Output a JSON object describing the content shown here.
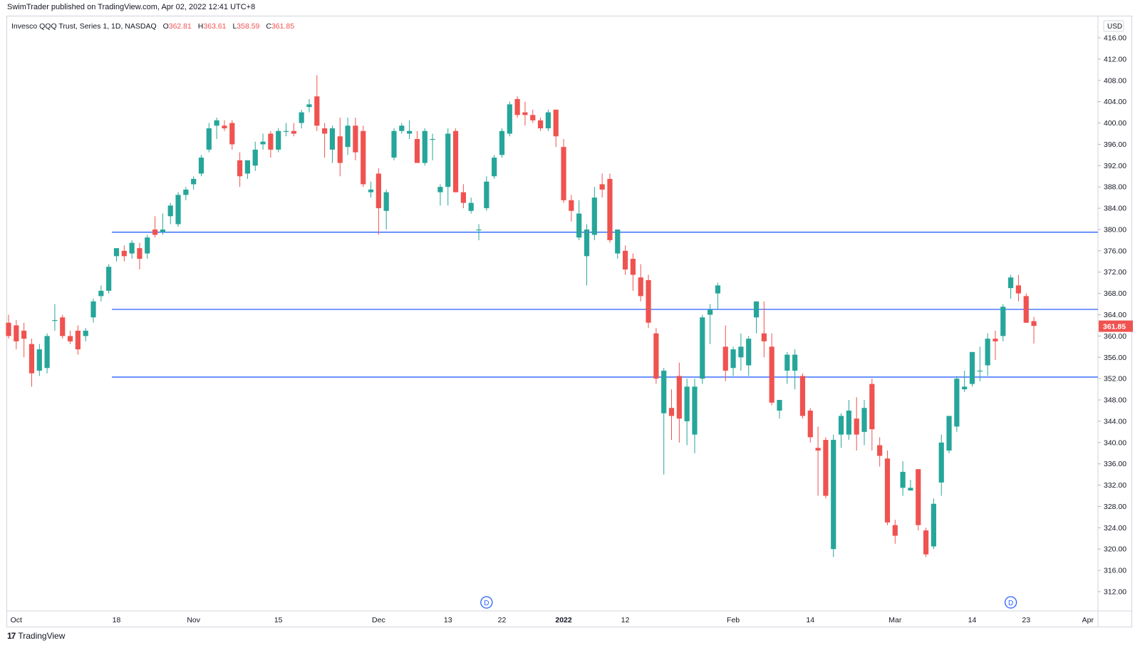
{
  "header": {
    "publisher": "SwimTrader published on TradingView.com, Apr 02, 2022 12:41 UTC+8"
  },
  "legend": {
    "symbol": "Invesco QQQ Trust, Series 1, 1D, NASDAQ",
    "open_label": "O",
    "open": "362.81",
    "high_label": "H",
    "high": "363.61",
    "low_label": "L",
    "low": "358.59",
    "close_label": "C",
    "close": "361.85"
  },
  "footer": {
    "brand": "TradingView",
    "logo": "tv-logo-icon"
  },
  "colors": {
    "up": "#26a69a",
    "down": "#ef5350",
    "line": "#2962ff",
    "axis": "#d1d4dc"
  },
  "chart_data": {
    "type": "candlestick",
    "currency": "USD",
    "last_price": "361.85",
    "ylim": [
      308,
      418
    ],
    "y_ticks": [
      312,
      316,
      320,
      324,
      328,
      332,
      336,
      340,
      344,
      348,
      352,
      356,
      360,
      364,
      368,
      372,
      376,
      380,
      384,
      388,
      392,
      396,
      400,
      404,
      408,
      412,
      416
    ],
    "x_ticks": [
      {
        "label": "Oct",
        "index": 1
      },
      {
        "label": "18",
        "index": 14
      },
      {
        "label": "Nov",
        "index": 24
      },
      {
        "label": "15",
        "index": 35
      },
      {
        "label": "Dec",
        "index": 48
      },
      {
        "label": "13",
        "index": 57
      },
      {
        "label": "22",
        "index": 64
      },
      {
        "label": "2022",
        "index": 72
      },
      {
        "label": "12",
        "index": 80
      },
      {
        "label": "Feb",
        "index": 94
      },
      {
        "label": "14",
        "index": 104
      },
      {
        "label": "Mar",
        "index": 115
      },
      {
        "label": "14",
        "index": 125
      },
      {
        "label": "23",
        "index": 132
      },
      {
        "label": "Apr",
        "index": 140
      }
    ],
    "events": [
      {
        "label": "D",
        "index": 62
      },
      {
        "label": "D",
        "index": 130
      }
    ],
    "horizontal_lines": [
      379.5,
      365.0,
      352.3
    ],
    "candles": [
      {
        "o": 362.5,
        "h": 364.0,
        "l": 359.5,
        "c": 360.0
      },
      {
        "o": 362.0,
        "h": 363.0,
        "l": 357.5,
        "c": 359.0
      },
      {
        "o": 361.0,
        "h": 362.5,
        "l": 356.0,
        "c": 359.5
      },
      {
        "o": 358.5,
        "h": 359.5,
        "l": 350.5,
        "c": 353.0
      },
      {
        "o": 353.5,
        "h": 358.5,
        "l": 352.5,
        "c": 357.5
      },
      {
        "o": 354.0,
        "h": 360.5,
        "l": 353.0,
        "c": 360.0
      },
      {
        "o": 363.0,
        "h": 366.0,
        "l": 361.0,
        "c": 363.0
      },
      {
        "o": 363.5,
        "h": 364.0,
        "l": 359.5,
        "c": 360.0
      },
      {
        "o": 360.0,
        "h": 361.0,
        "l": 358.5,
        "c": 359.0
      },
      {
        "o": 361.0,
        "h": 362.0,
        "l": 356.5,
        "c": 357.5
      },
      {
        "o": 360.0,
        "h": 361.5,
        "l": 359.0,
        "c": 361.0
      },
      {
        "o": 363.5,
        "h": 367.0,
        "l": 362.5,
        "c": 366.5
      },
      {
        "o": 367.5,
        "h": 369.5,
        "l": 366.5,
        "c": 368.5
      },
      {
        "o": 368.5,
        "h": 373.5,
        "l": 368.0,
        "c": 373.0
      },
      {
        "o": 375.0,
        "h": 376.5,
        "l": 374.0,
        "c": 376.5
      },
      {
        "o": 376.0,
        "h": 377.0,
        "l": 374.0,
        "c": 375.0
      },
      {
        "o": 375.5,
        "h": 378.0,
        "l": 374.5,
        "c": 377.5
      },
      {
        "o": 376.5,
        "h": 377.5,
        "l": 372.5,
        "c": 374.5
      },
      {
        "o": 375.5,
        "h": 379.0,
        "l": 374.5,
        "c": 378.5
      },
      {
        "o": 380.0,
        "h": 382.5,
        "l": 378.5,
        "c": 379.0
      },
      {
        "o": 379.5,
        "h": 383.0,
        "l": 379.0,
        "c": 380.0
      },
      {
        "o": 382.5,
        "h": 385.0,
        "l": 381.0,
        "c": 384.5
      },
      {
        "o": 381.0,
        "h": 387.0,
        "l": 380.5,
        "c": 386.5
      },
      {
        "o": 386.5,
        "h": 388.0,
        "l": 385.5,
        "c": 387.5
      },
      {
        "o": 388.5,
        "h": 390.0,
        "l": 387.5,
        "c": 389.5
      },
      {
        "o": 390.5,
        "h": 394.0,
        "l": 390.0,
        "c": 393.5
      },
      {
        "o": 395.0,
        "h": 400.0,
        "l": 394.5,
        "c": 399.0
      },
      {
        "o": 399.5,
        "h": 401.0,
        "l": 397.0,
        "c": 400.5
      },
      {
        "o": 399.5,
        "h": 400.5,
        "l": 398.5,
        "c": 399.0
      },
      {
        "o": 400.0,
        "h": 400.5,
        "l": 395.0,
        "c": 396.0
      },
      {
        "o": 393.0,
        "h": 394.5,
        "l": 388.0,
        "c": 390.0
      },
      {
        "o": 390.5,
        "h": 393.0,
        "l": 389.5,
        "c": 393.0
      },
      {
        "o": 392.0,
        "h": 396.5,
        "l": 391.0,
        "c": 395.0
      },
      {
        "o": 396.0,
        "h": 398.0,
        "l": 395.0,
        "c": 396.5
      },
      {
        "o": 398.0,
        "h": 398.5,
        "l": 393.5,
        "c": 395.0
      },
      {
        "o": 395.0,
        "h": 399.0,
        "l": 394.5,
        "c": 398.5
      },
      {
        "o": 398.5,
        "h": 400.0,
        "l": 397.5,
        "c": 398.5
      },
      {
        "o": 398.5,
        "h": 400.0,
        "l": 397.5,
        "c": 398.0
      },
      {
        "o": 400.0,
        "h": 402.5,
        "l": 399.0,
        "c": 402.0
      },
      {
        "o": 403.0,
        "h": 404.5,
        "l": 402.0,
        "c": 403.5
      },
      {
        "o": 405.0,
        "h": 409.0,
        "l": 398.5,
        "c": 399.5
      },
      {
        "o": 399.0,
        "h": 400.0,
        "l": 393.5,
        "c": 398.0
      },
      {
        "o": 395.0,
        "h": 399.5,
        "l": 392.5,
        "c": 399.0
      },
      {
        "o": 397.5,
        "h": 401.0,
        "l": 390.0,
        "c": 392.5
      },
      {
        "o": 395.5,
        "h": 401.0,
        "l": 394.0,
        "c": 399.5
      },
      {
        "o": 399.5,
        "h": 401.0,
        "l": 393.0,
        "c": 394.5
      },
      {
        "o": 398.5,
        "h": 399.5,
        "l": 388.0,
        "c": 388.5
      },
      {
        "o": 387.0,
        "h": 389.0,
        "l": 386.0,
        "c": 387.5
      },
      {
        "o": 390.5,
        "h": 391.5,
        "l": 379.0,
        "c": 384.0
      },
      {
        "o": 383.5,
        "h": 387.5,
        "l": 380.0,
        "c": 387.0
      },
      {
        "o": 393.5,
        "h": 399.0,
        "l": 393.0,
        "c": 398.5
      },
      {
        "o": 398.5,
        "h": 400.0,
        "l": 398.0,
        "c": 399.5
      },
      {
        "o": 398.0,
        "h": 400.5,
        "l": 397.0,
        "c": 398.5
      },
      {
        "o": 397.0,
        "h": 398.5,
        "l": 392.5,
        "c": 392.5
      },
      {
        "o": 392.5,
        "h": 399.0,
        "l": 392.0,
        "c": 398.5
      },
      {
        "o": 397.0,
        "h": 398.0,
        "l": 393.0,
        "c": 397.0
      },
      {
        "o": 387.0,
        "h": 388.5,
        "l": 384.5,
        "c": 388.0
      },
      {
        "o": 388.0,
        "h": 399.0,
        "l": 384.5,
        "c": 398.0
      },
      {
        "o": 398.5,
        "h": 399.0,
        "l": 387.0,
        "c": 387.0
      },
      {
        "o": 387.0,
        "h": 388.5,
        "l": 384.0,
        "c": 385.0
      },
      {
        "o": 383.5,
        "h": 386.0,
        "l": 383.0,
        "c": 385.0
      },
      {
        "o": 380.0,
        "h": 381.0,
        "l": 378.0,
        "c": 380.0
      },
      {
        "o": 384.0,
        "h": 390.0,
        "l": 383.5,
        "c": 389.0
      },
      {
        "o": 390.0,
        "h": 394.0,
        "l": 389.5,
        "c": 393.5
      },
      {
        "o": 394.0,
        "h": 399.0,
        "l": 393.5,
        "c": 398.5
      },
      {
        "o": 398.0,
        "h": 404.0,
        "l": 397.5,
        "c": 403.5
      },
      {
        "o": 404.5,
        "h": 405.0,
        "l": 401.0,
        "c": 401.5
      },
      {
        "o": 402.0,
        "h": 404.0,
        "l": 399.5,
        "c": 401.5
      },
      {
        "o": 401.5,
        "h": 402.5,
        "l": 400.0,
        "c": 400.5
      },
      {
        "o": 400.5,
        "h": 401.0,
        "l": 398.5,
        "c": 399.0
      },
      {
        "o": 399.0,
        "h": 402.5,
        "l": 398.5,
        "c": 402.0
      },
      {
        "o": 402.5,
        "h": 402.5,
        "l": 395.5,
        "c": 397.5
      },
      {
        "o": 395.5,
        "h": 397.0,
        "l": 385.0,
        "c": 385.5
      },
      {
        "o": 385.5,
        "h": 386.5,
        "l": 381.5,
        "c": 383.5
      },
      {
        "o": 378.5,
        "h": 385.5,
        "l": 378.0,
        "c": 383.0
      },
      {
        "o": 375.0,
        "h": 381.0,
        "l": 369.5,
        "c": 380.0
      },
      {
        "o": 379.0,
        "h": 388.0,
        "l": 378.0,
        "c": 386.0
      },
      {
        "o": 388.5,
        "h": 390.5,
        "l": 386.0,
        "c": 387.5
      },
      {
        "o": 389.5,
        "h": 390.5,
        "l": 377.5,
        "c": 378.0
      },
      {
        "o": 375.5,
        "h": 380.0,
        "l": 374.5,
        "c": 380.0
      },
      {
        "o": 376.0,
        "h": 377.0,
        "l": 371.5,
        "c": 372.5
      },
      {
        "o": 374.5,
        "h": 375.5,
        "l": 368.5,
        "c": 371.5
      },
      {
        "o": 371.0,
        "h": 373.5,
        "l": 366.5,
        "c": 367.5
      },
      {
        "o": 370.5,
        "h": 371.5,
        "l": 361.5,
        "c": 362.5
      },
      {
        "o": 360.5,
        "h": 361.5,
        "l": 351.0,
        "c": 352.0
      },
      {
        "o": 345.5,
        "h": 354.0,
        "l": 334.0,
        "c": 353.5
      },
      {
        "o": 346.5,
        "h": 350.0,
        "l": 340.5,
        "c": 345.0
      },
      {
        "o": 352.5,
        "h": 355.0,
        "l": 340.0,
        "c": 344.5
      },
      {
        "o": 344.0,
        "h": 352.0,
        "l": 339.5,
        "c": 350.5
      },
      {
        "o": 341.5,
        "h": 352.0,
        "l": 338.0,
        "c": 350.5
      },
      {
        "o": 352.0,
        "h": 364.0,
        "l": 351.0,
        "c": 363.5
      },
      {
        "o": 364.0,
        "h": 366.0,
        "l": 358.5,
        "c": 365.0
      },
      {
        "o": 368.0,
        "h": 370.0,
        "l": 365.0,
        "c": 369.5
      },
      {
        "o": 358.0,
        "h": 362.0,
        "l": 351.5,
        "c": 353.5
      },
      {
        "o": 354.0,
        "h": 358.0,
        "l": 352.5,
        "c": 357.5
      },
      {
        "o": 356.0,
        "h": 360.5,
        "l": 353.5,
        "c": 358.0
      },
      {
        "o": 354.5,
        "h": 360.0,
        "l": 352.5,
        "c": 359.5
      },
      {
        "o": 363.5,
        "h": 366.5,
        "l": 360.5,
        "c": 366.5
      },
      {
        "o": 360.5,
        "h": 366.5,
        "l": 356.0,
        "c": 359.0
      },
      {
        "o": 358.0,
        "h": 360.5,
        "l": 347.0,
        "c": 347.5
      },
      {
        "o": 346.0,
        "h": 348.0,
        "l": 344.5,
        "c": 348.0
      },
      {
        "o": 353.5,
        "h": 357.0,
        "l": 351.0,
        "c": 356.5
      },
      {
        "o": 353.5,
        "h": 357.5,
        "l": 350.0,
        "c": 356.5
      },
      {
        "o": 352.5,
        "h": 353.0,
        "l": 344.5,
        "c": 345.0
      },
      {
        "o": 346.0,
        "h": 346.5,
        "l": 340.0,
        "c": 341.0
      },
      {
        "o": 339.0,
        "h": 343.0,
        "l": 330.0,
        "c": 338.5
      },
      {
        "o": 340.5,
        "h": 341.0,
        "l": 329.5,
        "c": 330.0
      },
      {
        "o": 320.0,
        "h": 341.5,
        "l": 318.5,
        "c": 340.5
      },
      {
        "o": 341.5,
        "h": 345.5,
        "l": 339.0,
        "c": 345.0
      },
      {
        "o": 341.5,
        "h": 348.0,
        "l": 340.5,
        "c": 346.0
      },
      {
        "o": 344.5,
        "h": 348.5,
        "l": 338.5,
        "c": 341.5
      },
      {
        "o": 342.0,
        "h": 348.0,
        "l": 339.5,
        "c": 346.5
      },
      {
        "o": 351.0,
        "h": 352.0,
        "l": 338.5,
        "c": 342.5
      },
      {
        "o": 339.5,
        "h": 341.0,
        "l": 335.5,
        "c": 337.5
      },
      {
        "o": 337.0,
        "h": 338.5,
        "l": 324.5,
        "c": 325.0
      },
      {
        "o": 324.5,
        "h": 325.5,
        "l": 321.0,
        "c": 322.5
      },
      {
        "o": 331.5,
        "h": 336.5,
        "l": 330.0,
        "c": 334.5
      },
      {
        "o": 331.0,
        "h": 333.0,
        "l": 331.0,
        "c": 331.5
      },
      {
        "o": 335.0,
        "h": 335.0,
        "l": 323.5,
        "c": 324.5
      },
      {
        "o": 323.5,
        "h": 324.0,
        "l": 318.5,
        "c": 319.0
      },
      {
        "o": 320.5,
        "h": 329.5,
        "l": 320.0,
        "c": 328.5
      },
      {
        "o": 332.5,
        "h": 341.5,
        "l": 330.0,
        "c": 340.0
      },
      {
        "o": 338.5,
        "h": 345.0,
        "l": 338.0,
        "c": 345.0
      },
      {
        "o": 343.0,
        "h": 352.5,
        "l": 342.0,
        "c": 352.0
      },
      {
        "o": 350.0,
        "h": 353.5,
        "l": 349.5,
        "c": 350.5
      },
      {
        "o": 351.0,
        "h": 356.5,
        "l": 350.5,
        "c": 357.0
      },
      {
        "o": 353.5,
        "h": 358.0,
        "l": 351.5,
        "c": 353.5
      },
      {
        "o": 354.5,
        "h": 360.5,
        "l": 352.5,
        "c": 359.5
      },
      {
        "o": 359.5,
        "h": 361.0,
        "l": 355.5,
        "c": 359.0
      },
      {
        "o": 360.0,
        "h": 366.0,
        "l": 359.0,
        "c": 365.5
      },
      {
        "o": 369.0,
        "h": 371.5,
        "l": 367.0,
        "c": 371.0
      },
      {
        "o": 369.5,
        "h": 371.5,
        "l": 366.5,
        "c": 368.0
      },
      {
        "o": 367.5,
        "h": 368.0,
        "l": 362.5,
        "c": 362.5
      },
      {
        "o": 362.8,
        "h": 363.6,
        "l": 358.6,
        "c": 361.9
      }
    ]
  }
}
